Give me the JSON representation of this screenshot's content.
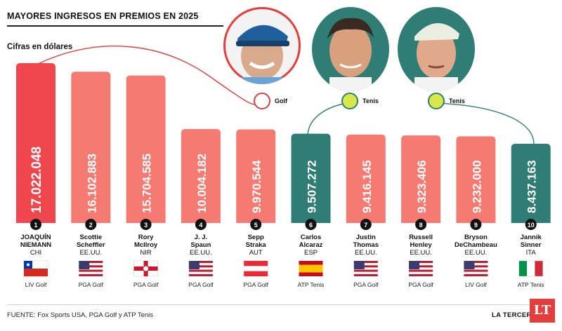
{
  "header": {
    "title": "MAYORES INGRESOS EN PREMIOS EN 2025",
    "subtitle": "Cifras en dólares"
  },
  "chart_data": {
    "type": "bar",
    "title": "MAYORES INGRESOS EN PREMIOS EN 2025",
    "subtitle": "Cifras en dólares",
    "ylim": [
      0,
      17022048
    ],
    "categories": [
      "JOAQUÍN NIEMANN",
      "Scottie Scheffler",
      "Rory McIlroy",
      "J. J. Spaun",
      "Sepp Straka",
      "Carlos Alcaraz",
      "Justin Thomas",
      "Russell Henley",
      "Bryson DeChambeau",
      "Jannik Sinner"
    ],
    "values": [
      17022048,
      16102883,
      15704585,
      10004182,
      9970544,
      9507272,
      9416145,
      9323406,
      9232000,
      8437163
    ],
    "bars": [
      {
        "rank": "1",
        "value_label": "17.022.048",
        "name_line1": "JOAQUÍN",
        "name_line2": "NIEMANN",
        "country": "CHI",
        "tour": "LIV Golf",
        "flag": "chile-flag",
        "sport": "golf",
        "color": "#f0474f"
      },
      {
        "rank": "2",
        "value_label": "16.102.883",
        "name_line1": "Scottie",
        "name_line2": "Scheffler",
        "country": "EE.UU.",
        "tour": "PGA Golf",
        "flag": "usa-flag",
        "sport": "golf",
        "color": "#f47a72"
      },
      {
        "rank": "3",
        "value_label": "15.704.585",
        "name_line1": "Rory",
        "name_line2": "McIlroy",
        "country": "NIR",
        "tour": "PGA Golf",
        "flag": "northern-ireland-flag",
        "sport": "golf",
        "color": "#f47a72"
      },
      {
        "rank": "4",
        "value_label": "10.004.182",
        "name_line1": "J. J.",
        "name_line2": "Spaun",
        "country": "EE.UU.",
        "tour": "PGA Golf",
        "flag": "usa-flag",
        "sport": "golf",
        "color": "#f47a72"
      },
      {
        "rank": "5",
        "value_label": "9.970.544",
        "name_line1": "Sepp",
        "name_line2": "Straka",
        "country": "AUT",
        "tour": "PGA Golf",
        "flag": "austria-flag",
        "sport": "golf",
        "color": "#f47a72"
      },
      {
        "rank": "6",
        "value_label": "9.507.272",
        "name_line1": "Carlos",
        "name_line2": "Alcaraz",
        "country": "ESP",
        "tour": "ATP Tenis",
        "flag": "spain-flag",
        "sport": "tennis",
        "color": "#2f7d74"
      },
      {
        "rank": "7",
        "value_label": "9.416.145",
        "name_line1": "Justin",
        "name_line2": "Thomas",
        "country": "EE.UU.",
        "tour": "PGA Golf",
        "flag": "usa-flag",
        "sport": "golf",
        "color": "#f47a72"
      },
      {
        "rank": "8",
        "value_label": "9.323.406",
        "name_line1": "Russell",
        "name_line2": "Henley",
        "country": "EE.UU.",
        "tour": "PGA Golf",
        "flag": "usa-flag",
        "sport": "golf",
        "color": "#f47a72"
      },
      {
        "rank": "9",
        "value_label": "9.232.000",
        "name_line1": "Bryson",
        "name_line2": "DeChambeau",
        "country": "EE.UU.",
        "tour": "LIV Golf",
        "flag": "usa-flag",
        "sport": "golf",
        "color": "#f47a72"
      },
      {
        "rank": "10",
        "value_label": "8.437.163",
        "name_line1": "Jannik",
        "name_line2": "Sinner",
        "country": "ITA",
        "tour": "ATP Tenis",
        "flag": "italy-flag",
        "sport": "tennis",
        "color": "#2f7d74"
      }
    ]
  },
  "portraits": [
    {
      "name": "niemann-portrait",
      "sport_label": "Golf",
      "icon": "golf-ball-icon"
    },
    {
      "name": "alcaraz-portrait",
      "sport_label": "Tenis",
      "icon": "tennis-ball-icon"
    },
    {
      "name": "sinner-portrait",
      "sport_label": "Tenis",
      "icon": "tennis-ball-icon"
    }
  ],
  "footer": {
    "source": "FUENTE:  Fox Sports USA, PGA Golf y ATP Tenis",
    "brand": "LA TERCERA",
    "logo": "LT"
  }
}
